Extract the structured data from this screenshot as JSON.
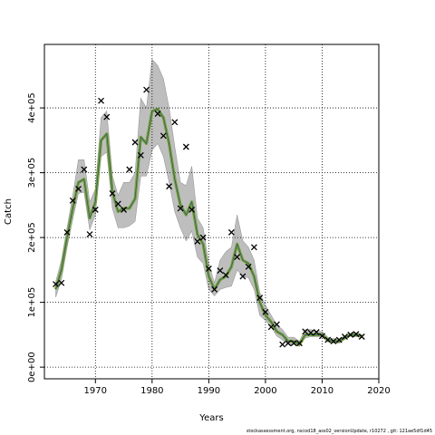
{
  "chart_data": {
    "type": "line",
    "xlabel": "Years",
    "ylabel": "Catch",
    "xlim": [
      1961,
      2020
    ],
    "ylim": [
      -18000,
      498000
    ],
    "x_ticks": [
      1970,
      1980,
      1990,
      2000,
      2010,
      2020
    ],
    "x_tick_labels": [
      "1970",
      "1980",
      "1990",
      "2000",
      "2010",
      "2020"
    ],
    "y_ticks": [
      0,
      100000,
      200000,
      300000,
      400000
    ],
    "y_tick_labels": [
      "0e+00",
      "1e+05",
      "2e+05",
      "3e+05",
      "4e+05"
    ],
    "grid": true,
    "series": [
      {
        "role": "estimate",
        "style": "line with confidence band",
        "color": "#77a12b",
        "band_color": "#bebebe",
        "x": [
          1963,
          1964,
          1965,
          1966,
          1967,
          1968,
          1969,
          1970,
          1971,
          1972,
          1973,
          1974,
          1975,
          1976,
          1977,
          1978,
          1979,
          1980,
          1981,
          1982,
          1983,
          1984,
          1985,
          1986,
          1987,
          1988,
          1989,
          1990,
          1991,
          1992,
          1993,
          1994,
          1995,
          1996,
          1997,
          1998,
          1999,
          2000,
          2001,
          2002,
          2003,
          2004,
          2005,
          2006,
          2007,
          2008,
          2009,
          2010,
          2011,
          2012,
          2013,
          2014,
          2015,
          2016,
          2017
        ],
        "y": [
          120000,
          150000,
          200000,
          245000,
          285000,
          290000,
          230000,
          255000,
          350000,
          360000,
          270000,
          240000,
          245000,
          245000,
          260000,
          355000,
          345000,
          395000,
          398000,
          385000,
          345000,
          290000,
          250000,
          235000,
          255000,
          205000,
          190000,
          140000,
          120000,
          135000,
          140000,
          155000,
          190000,
          165000,
          160000,
          140000,
          100000,
          80000,
          70000,
          55000,
          50000,
          40000,
          40000,
          35000,
          50000,
          50000,
          50000,
          50000,
          42000,
          40000,
          40000,
          45000,
          50000,
          50000,
          48000
        ],
        "lower": [
          108000,
          135000,
          185000,
          228000,
          268000,
          270000,
          212000,
          235000,
          325000,
          332000,
          245000,
          215000,
          215000,
          218000,
          225000,
          295000,
          295000,
          335000,
          345000,
          325000,
          285000,
          240000,
          215000,
          195000,
          210000,
          170000,
          160000,
          120000,
          110000,
          120000,
          123000,
          125000,
          150000,
          140000,
          138000,
          120000,
          80000,
          72000,
          62000,
          48000,
          42000,
          35000,
          35000,
          32000,
          45000,
          47000,
          47000,
          47000,
          39000,
          37000,
          37000,
          43000,
          48000,
          47000,
          46000
        ],
        "upper": [
          132000,
          165000,
          215000,
          265000,
          320000,
          320000,
          255000,
          275000,
          385000,
          395000,
          295000,
          265000,
          285000,
          285000,
          300000,
          415000,
          400000,
          475000,
          465000,
          445000,
          400000,
          340000,
          285000,
          280000,
          310000,
          230000,
          215000,
          160000,
          130000,
          165000,
          178000,
          185000,
          235000,
          195000,
          185000,
          165000,
          115000,
          95000,
          80000,
          65000,
          58000,
          46000,
          46000,
          40000,
          58000,
          58000,
          55000,
          55000,
          46000,
          44000,
          44000,
          48000,
          52000,
          53000,
          50000
        ]
      },
      {
        "role": "observed",
        "style": "cross markers",
        "color": "#000000",
        "x": [
          1963,
          1964,
          1965,
          1966,
          1967,
          1968,
          1969,
          1970,
          1971,
          1972,
          1973,
          1974,
          1975,
          1976,
          1977,
          1978,
          1979,
          1981,
          1982,
          1983,
          1984,
          1985,
          1986,
          1987,
          1988,
          1989,
          1990,
          1991,
          1992,
          1993,
          1994,
          1995,
          1996,
          1997,
          1998,
          1999,
          2000,
          2001,
          2002,
          2003,
          2004,
          2005,
          2006,
          2007,
          2008,
          2009,
          2010,
          2011,
          2012,
          2013,
          2014,
          2015,
          2016,
          2017
        ],
        "y": [
          128000,
          130000,
          208000,
          257000,
          275000,
          305000,
          205000,
          243000,
          411000,
          386000,
          268000,
          252000,
          243000,
          305000,
          347000,
          327000,
          428000,
          391000,
          357000,
          279000,
          378000,
          245000,
          340000,
          243000,
          194000,
          200000,
          152000,
          120000,
          149000,
          142000,
          208000,
          170000,
          140000,
          155000,
          185000,
          107000,
          85000,
          62000,
          66000,
          35000,
          37000,
          37000,
          37000,
          55000,
          53000,
          54000,
          48000,
          42000,
          40000,
          42000,
          47000,
          50000,
          51000,
          47000
        ]
      }
    ]
  },
  "footer_text": "stockassessment.org, nscod18_ass02_versionUpdate, r10272 , git: 121ae5df1d45"
}
